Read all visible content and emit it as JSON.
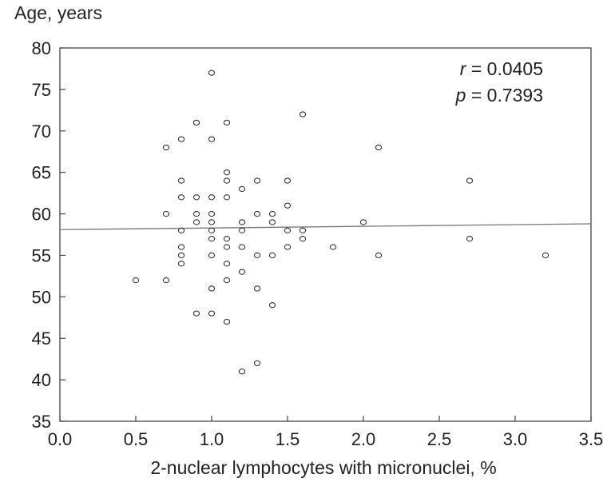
{
  "chart_data": {
    "type": "scatter",
    "ylabel": "Age, years",
    "xlabel": "2-nuclear lymphocytes with micronuclei, %",
    "xlim": [
      0.0,
      3.5
    ],
    "ylim": [
      35,
      80
    ],
    "xticks": [
      "0.0",
      "0.5",
      "1.0",
      "1.5",
      "2.0",
      "2.5",
      "3.0",
      "3.5"
    ],
    "yticks": [
      "35",
      "40",
      "45",
      "50",
      "55",
      "60",
      "65",
      "70",
      "75",
      "80"
    ],
    "grid": false,
    "annotations": {
      "r_symbol": "r",
      "r_text": " = 0.0405",
      "p_symbol": "p",
      "p_text": " = 0.7393"
    },
    "regression_line": {
      "x": [
        0.0,
        3.5
      ],
      "y": [
        58.1,
        58.8
      ]
    },
    "points": [
      {
        "x": 0.5,
        "y": 52
      },
      {
        "x": 0.7,
        "y": 68
      },
      {
        "x": 0.7,
        "y": 60
      },
      {
        "x": 0.7,
        "y": 52
      },
      {
        "x": 0.8,
        "y": 69
      },
      {
        "x": 0.8,
        "y": 64
      },
      {
        "x": 0.8,
        "y": 62
      },
      {
        "x": 0.8,
        "y": 58
      },
      {
        "x": 0.8,
        "y": 56
      },
      {
        "x": 0.8,
        "y": 55
      },
      {
        "x": 0.8,
        "y": 54
      },
      {
        "x": 0.9,
        "y": 71
      },
      {
        "x": 0.9,
        "y": 62
      },
      {
        "x": 0.9,
        "y": 60
      },
      {
        "x": 0.9,
        "y": 59
      },
      {
        "x": 0.9,
        "y": 48
      },
      {
        "x": 1.0,
        "y": 77
      },
      {
        "x": 1.0,
        "y": 69
      },
      {
        "x": 1.0,
        "y": 62
      },
      {
        "x": 1.0,
        "y": 60
      },
      {
        "x": 1.0,
        "y": 59
      },
      {
        "x": 1.0,
        "y": 58
      },
      {
        "x": 1.0,
        "y": 57
      },
      {
        "x": 1.0,
        "y": 55
      },
      {
        "x": 1.0,
        "y": 51
      },
      {
        "x": 1.0,
        "y": 48
      },
      {
        "x": 1.1,
        "y": 71
      },
      {
        "x": 1.1,
        "y": 65
      },
      {
        "x": 1.1,
        "y": 64
      },
      {
        "x": 1.1,
        "y": 62
      },
      {
        "x": 1.1,
        "y": 57
      },
      {
        "x": 1.1,
        "y": 56
      },
      {
        "x": 1.1,
        "y": 54
      },
      {
        "x": 1.1,
        "y": 52
      },
      {
        "x": 1.1,
        "y": 47
      },
      {
        "x": 1.2,
        "y": 63
      },
      {
        "x": 1.2,
        "y": 59
      },
      {
        "x": 1.2,
        "y": 58
      },
      {
        "x": 1.2,
        "y": 56
      },
      {
        "x": 1.2,
        "y": 53
      },
      {
        "x": 1.2,
        "y": 41
      },
      {
        "x": 1.3,
        "y": 64
      },
      {
        "x": 1.3,
        "y": 60
      },
      {
        "x": 1.3,
        "y": 55
      },
      {
        "x": 1.3,
        "y": 51
      },
      {
        "x": 1.3,
        "y": 42
      },
      {
        "x": 1.4,
        "y": 60
      },
      {
        "x": 1.4,
        "y": 59
      },
      {
        "x": 1.4,
        "y": 55
      },
      {
        "x": 1.4,
        "y": 49
      },
      {
        "x": 1.5,
        "y": 64
      },
      {
        "x": 1.5,
        "y": 61
      },
      {
        "x": 1.5,
        "y": 58
      },
      {
        "x": 1.5,
        "y": 56
      },
      {
        "x": 1.6,
        "y": 72
      },
      {
        "x": 1.6,
        "y": 58
      },
      {
        "x": 1.6,
        "y": 57
      },
      {
        "x": 1.8,
        "y": 56
      },
      {
        "x": 2.0,
        "y": 59
      },
      {
        "x": 2.1,
        "y": 68
      },
      {
        "x": 2.1,
        "y": 55
      },
      {
        "x": 2.7,
        "y": 64
      },
      {
        "x": 2.7,
        "y": 57
      },
      {
        "x": 3.2,
        "y": 55
      }
    ]
  }
}
